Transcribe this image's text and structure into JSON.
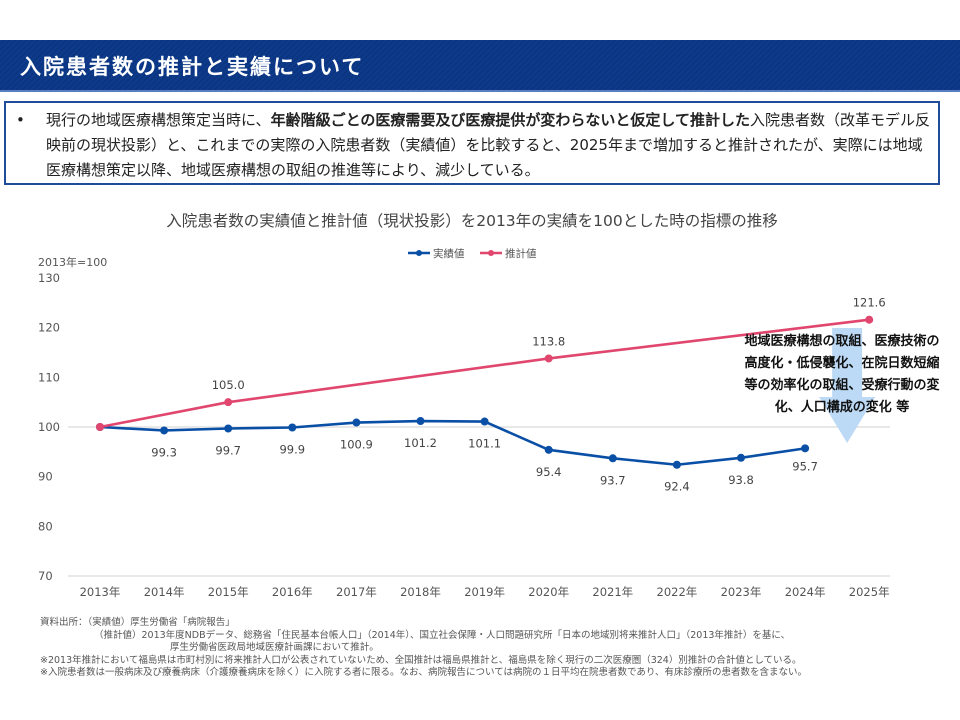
{
  "header": {
    "title": "入院患者数の推計と実績について"
  },
  "summary": {
    "bullet": "•",
    "text_plain_1": "現行の地域医療構想策定当時に、",
    "text_bold": "年齢階級ごとの医療需要及び医療提供が変わらないと仮定して推計した",
    "text_plain_2": "入院患者数（改革モデル反映前の現状投影）と、これまでの実際の入院患者数（実績値）を比較すると、2025年まで増加すると推計されたが、実際には地域医療構想策定以降、地域医療構想の取組の推進等により、減少している。"
  },
  "colors": {
    "header_bg": "#0c3785",
    "actual": "#0a4fa6",
    "projected": "#e0466e",
    "arrow": "#bcd9f5",
    "grid": "#e0e0e0"
  },
  "chart_data": {
    "type": "line",
    "title": "入院患者数の実績値と推計値（現状投影）を2013年の実績を100とした時の指標の推移",
    "ylabel": "2013年=100",
    "xlabel": "",
    "ylim": [
      70,
      130
    ],
    "yticks": [
      70,
      80,
      90,
      100,
      110,
      120,
      130
    ],
    "legend_position": "top-center",
    "grid": "baseline at 70 and 100 only",
    "categories": [
      "2013年",
      "2014年",
      "2015年",
      "2016年",
      "2017年",
      "2018年",
      "2019年",
      "2020年",
      "2021年",
      "2022年",
      "2023年",
      "2024年",
      "2025年"
    ],
    "series": [
      {
        "name": "実績値",
        "color": "#0a4fa6",
        "values": [
          100,
          99.3,
          99.7,
          99.9,
          100.9,
          101.2,
          101.1,
          95.4,
          93.7,
          92.4,
          93.8,
          95.7,
          null
        ],
        "labels": [
          "",
          "99.3",
          "99.7",
          "99.9",
          "100.9",
          "101.2",
          "101.1",
          "95.4",
          "93.7",
          "92.4",
          "93.8",
          "95.7",
          ""
        ]
      },
      {
        "name": "推計値",
        "color": "#e0466e",
        "values": [
          100,
          null,
          105.0,
          null,
          null,
          null,
          null,
          113.8,
          null,
          null,
          null,
          null,
          121.6
        ],
        "labels": [
          "",
          "",
          "105.0",
          "",
          "",
          "",
          "",
          "113.8",
          "",
          "",
          "",
          "",
          "121.6"
        ]
      }
    ],
    "annotation": {
      "lines": [
        "地域医療構想の取組、医療技術の",
        "高度化・低侵襲化、在院日数短縮",
        "等の効率化の取組、受療行動の変",
        "化、人口構成の変化 等"
      ],
      "arrow": "down, from 2025 projected toward actual"
    }
  },
  "footnotes": [
    "資料出所：（実績値）厚生労働省「病院報告」",
    "（推計値）2013年度NDBデータ、総務省「住民基本台帳人口」（2014年）、国立社会保障・人口問題研究所「日本の地域別将来推計人口」（2013年推計）を基に、",
    "厚生労働省医政局地域医療計画課において推計。",
    "※2013年推計において福島県は市町村別に将来推計人口が公表されていないため、全国推計は福島県推計と、福島県を除く現行の二次医療圏（324）別推計の合計値としている。",
    "※入院患者数は一般病床及び療養病床（介護療養病床を除く）に入院する者に限る。なお、病院報告については病院の１日平均在院患者数であり、有床診療所の患者数を含まない。"
  ]
}
